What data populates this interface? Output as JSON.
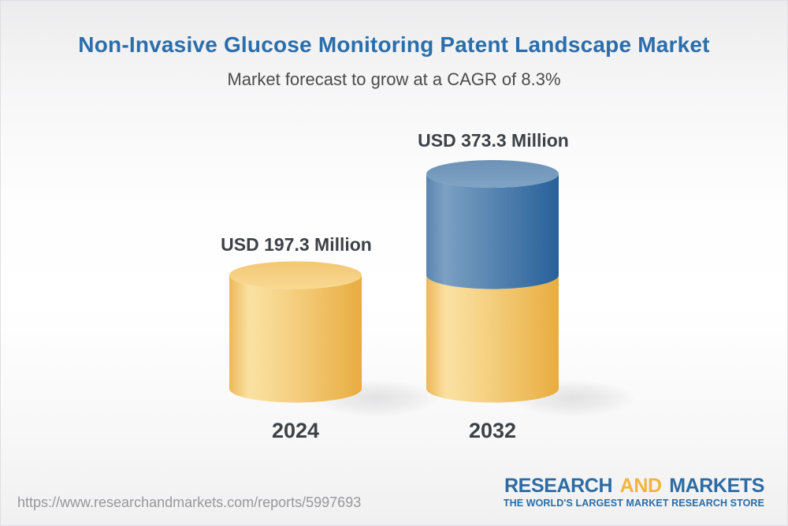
{
  "header": {
    "title": "Non-Invasive Glucose Monitoring Patent Landscape Market",
    "subtitle": "Market forecast to grow at a CAGR of 8.3%"
  },
  "chart_data": {
    "type": "bar",
    "subtype": "3d-stacked-cylinders",
    "title": "Non-Invasive Glucose Monitoring Patent Landscape Market",
    "unit": "USD Million",
    "cagr": "8.3%",
    "categories": [
      "2024",
      "2032"
    ],
    "values": [
      197.3,
      373.3
    ],
    "bars": [
      {
        "year": "2024",
        "label": "USD 197.3 Million",
        "value": 197.3,
        "segments": [
          {
            "value": 197.3,
            "color": "gold"
          }
        ]
      },
      {
        "year": "2032",
        "label": "USD 373.3 Million",
        "value": 373.3,
        "segments": [
          {
            "value": 197.3,
            "color": "gold"
          },
          {
            "value": 176.0,
            "color": "blue"
          }
        ]
      }
    ],
    "colors": {
      "gold": "#F0BC54",
      "blue": "#4879A9"
    },
    "legend": null,
    "grid": false
  },
  "footer": {
    "url": "https://www.researchandmarkets.com/reports/5997693",
    "logo": {
      "research": "RESEARCH",
      "and": "AND",
      "markets": "MARKETS",
      "tagline": "THE WORLD'S LARGEST MARKET RESEARCH STORE",
      "blue": "#2D6CA3",
      "gold": "#F1B53C"
    }
  }
}
